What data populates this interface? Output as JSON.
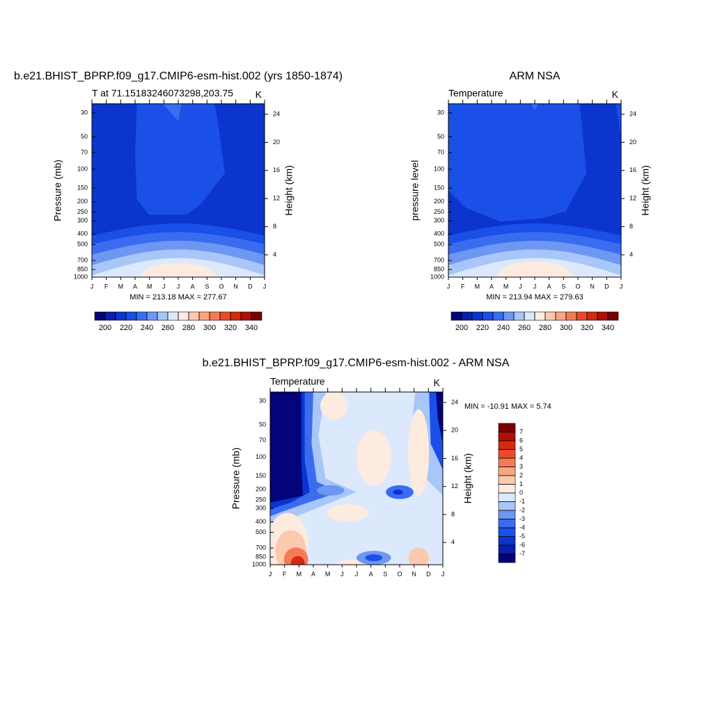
{
  "chart_data": [
    {
      "type": "contour",
      "title": "b.e21.BHIST_BPRP.f09_g17.CMIP6-esm-hist.002 (yrs 1850-1874)",
      "left_string": "T at 71.15183246073298,203.75",
      "right_string": "K",
      "ylabel": "Pressure (mb)",
      "y2label": "Height (km)",
      "categories": [
        "J",
        "F",
        "M",
        "A",
        "M",
        "J",
        "J",
        "A",
        "S",
        "O",
        "N",
        "D",
        "J"
      ],
      "y_log": true,
      "ylim": [
        1000,
        24.7
      ],
      "yticks": [
        30,
        50,
        70,
        100,
        150,
        200,
        250,
        300,
        400,
        500,
        700,
        850,
        1000
      ],
      "y2lim": [
        0.83,
        25.49
      ],
      "y2ticks": [
        4,
        8,
        12,
        16,
        20,
        24
      ],
      "summary": "MIN = 213.18 MAX = 277.67",
      "colorbar": {
        "orientation": "horizontal",
        "levels": [
          200,
          210,
          220,
          230,
          240,
          250,
          260,
          270,
          280,
          290,
          300,
          310,
          320,
          330,
          340
        ],
        "ticks": [
          200,
          220,
          240,
          260,
          280,
          300,
          320,
          340
        ],
        "colors": [
          "#03037a",
          "#0a1fa8",
          "#0b35cc",
          "#1a4fe8",
          "#3a6cf0",
          "#6d97f3",
          "#a8c6f8",
          "#dce9fc",
          "#fdebe0",
          "#fcc9ae",
          "#f9a680",
          "#f47b55",
          "#ec4a27",
          "#d42a10",
          "#b00f06",
          "#7a0000"
        ]
      }
    },
    {
      "type": "contour",
      "title": "ARM NSA",
      "left_string": "Temperature",
      "right_string": "K",
      "ylabel": "pressure level",
      "y2label": "Height (km)",
      "categories": [
        "J",
        "F",
        "M",
        "A",
        "M",
        "J",
        "J",
        "A",
        "S",
        "O",
        "N",
        "D",
        "J"
      ],
      "y_log": true,
      "ylim": [
        1000,
        24.7
      ],
      "yticks": [
        30,
        50,
        70,
        100,
        150,
        200,
        250,
        300,
        400,
        500,
        700,
        850,
        1000
      ],
      "y2lim": [
        0.83,
        25.49
      ],
      "y2ticks": [
        4,
        8,
        12,
        16,
        20,
        24
      ],
      "summary": "MIN = 213.94 MAX = 279.63",
      "colorbar": {
        "orientation": "horizontal",
        "levels": [
          200,
          210,
          220,
          230,
          240,
          250,
          260,
          270,
          280,
          290,
          300,
          310,
          320,
          330,
          340
        ],
        "ticks": [
          200,
          220,
          240,
          260,
          280,
          300,
          320,
          340
        ],
        "colors": [
          "#03037a",
          "#0a1fa8",
          "#0b35cc",
          "#1a4fe8",
          "#3a6cf0",
          "#6d97f3",
          "#a8c6f8",
          "#dce9fc",
          "#fdebe0",
          "#fcc9ae",
          "#f9a680",
          "#f47b55",
          "#ec4a27",
          "#d42a10",
          "#b00f06",
          "#7a0000"
        ]
      }
    },
    {
      "type": "contour",
      "title": "b.e21.BHIST_BPRP.f09_g17.CMIP6-esm-hist.002 - ARM NSA",
      "left_string": "Temperature",
      "right_string": "K",
      "ylabel": "Pressure (mb)",
      "y2label": "Height (km)",
      "categories": [
        "J",
        "F",
        "M",
        "A",
        "M",
        "J",
        "J",
        "A",
        "S",
        "O",
        "N",
        "D",
        "J"
      ],
      "y_log": true,
      "ylim": [
        1000,
        24.7
      ],
      "yticks": [
        30,
        50,
        70,
        100,
        150,
        200,
        250,
        300,
        400,
        500,
        700,
        850,
        1000
      ],
      "y2lim": [
        0.83,
        25.49
      ],
      "y2ticks": [
        4,
        8,
        12,
        16,
        20,
        24
      ],
      "summary": "MIN = -10.91 MAX =   5.74",
      "colorbar": {
        "orientation": "vertical",
        "levels": [
          -7,
          -6,
          -5,
          -4,
          -3,
          -2,
          -1,
          0,
          1,
          2,
          3,
          4,
          5,
          6,
          7
        ],
        "ticks": [
          -7,
          -6,
          -5,
          -4,
          -3,
          -2,
          -1,
          0,
          1,
          2,
          3,
          4,
          5,
          6,
          7
        ],
        "colors": [
          "#03037a",
          "#0a1fa8",
          "#0b35cc",
          "#1a4fe8",
          "#3a6cf0",
          "#6d97f3",
          "#a8c6f8",
          "#dce9fc",
          "#fdebe0",
          "#fcc9ae",
          "#f9a680",
          "#f47b55",
          "#ec4a27",
          "#d42a10",
          "#b00f06",
          "#7a0000"
        ]
      }
    }
  ]
}
